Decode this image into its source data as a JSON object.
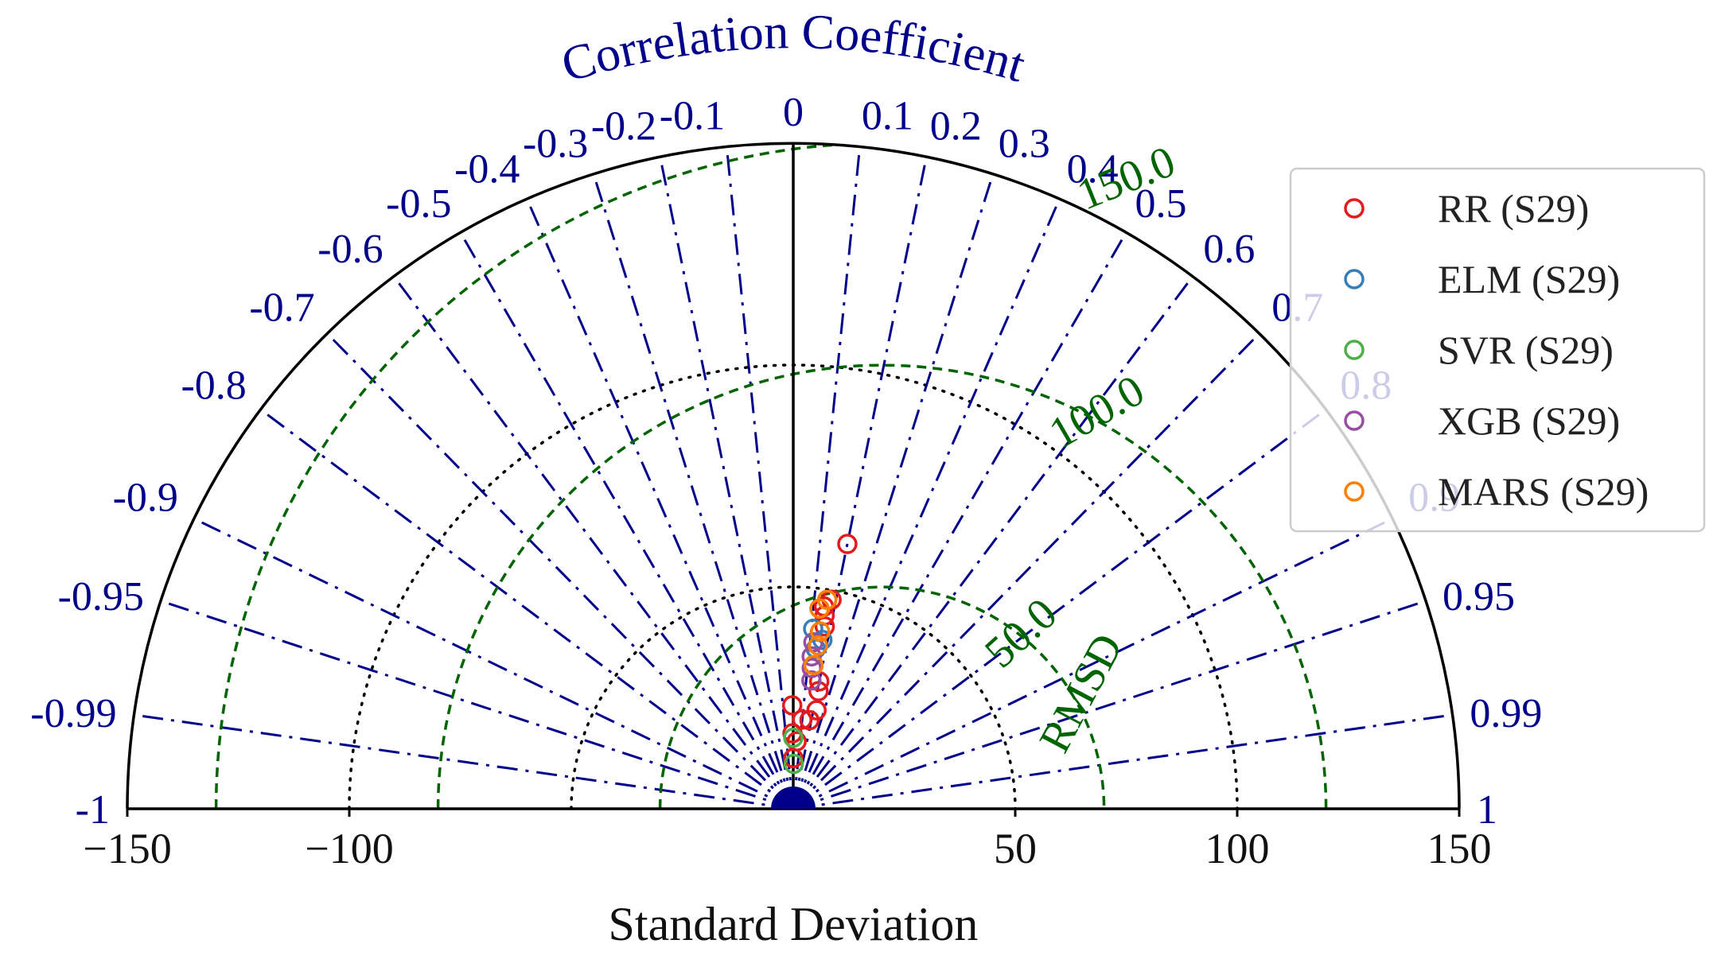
{
  "chart_data": {
    "type": "scatter",
    "subtype": "taylor-diagram",
    "title": "",
    "xlabel": "Standard Deviation",
    "corr_label": "Correlation Coefficient",
    "rmsd_label": "RMSD",
    "sd_range": [
      -150,
      150
    ],
    "sd_ticks": [
      {
        "value": -150,
        "label": "−150"
      },
      {
        "value": -100,
        "label": "−100"
      },
      {
        "value": 50,
        "label": "50"
      },
      {
        "value": 100,
        "label": "100"
      },
      {
        "value": 150,
        "label": "150"
      }
    ],
    "sd_circles": [
      50,
      100
    ],
    "corr_ticks": [
      {
        "value": -1,
        "label": "-1"
      },
      {
        "value": -0.99,
        "label": "-0.99"
      },
      {
        "value": -0.95,
        "label": "-0.95"
      },
      {
        "value": -0.9,
        "label": "-0.9"
      },
      {
        "value": -0.8,
        "label": "-0.8"
      },
      {
        "value": -0.7,
        "label": "-0.7"
      },
      {
        "value": -0.6,
        "label": "-0.6"
      },
      {
        "value": -0.5,
        "label": "-0.5"
      },
      {
        "value": -0.4,
        "label": "-0.4"
      },
      {
        "value": -0.3,
        "label": "-0.3"
      },
      {
        "value": -0.2,
        "label": "-0.2"
      },
      {
        "value": -0.1,
        "label": "-0.1"
      },
      {
        "value": 0,
        "label": "0"
      },
      {
        "value": 0.1,
        "label": "0.1"
      },
      {
        "value": 0.2,
        "label": "0.2"
      },
      {
        "value": 0.3,
        "label": "0.3"
      },
      {
        "value": 0.4,
        "label": "0.4"
      },
      {
        "value": 0.5,
        "label": "0.5"
      },
      {
        "value": 0.6,
        "label": "0.6"
      },
      {
        "value": 0.7,
        "label": "0.7"
      },
      {
        "value": 0.8,
        "label": "0.8"
      },
      {
        "value": 0.9,
        "label": "0.9"
      },
      {
        "value": 0.95,
        "label": "0.95"
      },
      {
        "value": 0.99,
        "label": "0.99"
      },
      {
        "value": 1,
        "label": "1"
      }
    ],
    "reference_sd": 20,
    "rmsd_contours": [
      {
        "value": 50,
        "label": "50.0"
      },
      {
        "value": 100,
        "label": "100.0"
      },
      {
        "value": 150,
        "label": "150.0"
      }
    ],
    "grid": true,
    "legend_position": "right",
    "series": [
      {
        "name": "RR (S29)",
        "color": "#e41a1c",
        "points": [
          {
            "sd": 60.9,
            "corr": 0.2
          },
          {
            "sd": 47.9,
            "corr": 0.18
          },
          {
            "sd": 46.1,
            "corr": 0.15
          },
          {
            "sd": 44.1,
            "corr": 0.16
          },
          {
            "sd": 41.7,
            "corr": 0.17
          },
          {
            "sd": 29.3,
            "corr": 0.2
          },
          {
            "sd": 27.1,
            "corr": 0.21
          },
          {
            "sd": 22.8,
            "corr": 0.23
          },
          {
            "sd": 20.3,
            "corr": 0.18
          },
          {
            "sd": 20.2,
            "corr": 0.1
          },
          {
            "sd": 23.3,
            "corr": -0.01
          },
          {
            "sd": 17.0,
            "corr": -0.01
          },
          {
            "sd": 15.2,
            "corr": 0.05
          },
          {
            "sd": 11.4,
            "corr": 0.0
          }
        ]
      },
      {
        "name": "ELM (S29)",
        "color": "#377eb8",
        "points": [
          {
            "sd": 40.8,
            "corr": 0.11
          },
          {
            "sd": 38.6,
            "corr": 0.17
          },
          {
            "sd": 36.4,
            "corr": 0.14
          }
        ]
      },
      {
        "name": "SVR (S29)",
        "color": "#4daf4a",
        "points": [
          {
            "sd": 10.1,
            "corr": 0.01
          },
          {
            "sd": 16.0,
            "corr": 0.0
          }
        ]
      },
      {
        "name": "XGB (S29)",
        "color": "#984ea3",
        "points": [
          {
            "sd": 37.8,
            "corr": 0.12
          },
          {
            "sd": 34.6,
            "corr": 0.12
          },
          {
            "sd": 32.0,
            "corr": 0.13
          },
          {
            "sd": 29.2,
            "corr": 0.14
          }
        ]
      },
      {
        "name": "MARS (S29)",
        "color": "#ff7f00",
        "points": [
          {
            "sd": 47.7,
            "corr": 0.16
          },
          {
            "sd": 45.5,
            "corr": 0.13
          },
          {
            "sd": 40.4,
            "corr": 0.15
          },
          {
            "sd": 37.2,
            "corr": 0.15
          },
          {
            "sd": 32.7,
            "corr": 0.14
          }
        ]
      }
    ]
  }
}
